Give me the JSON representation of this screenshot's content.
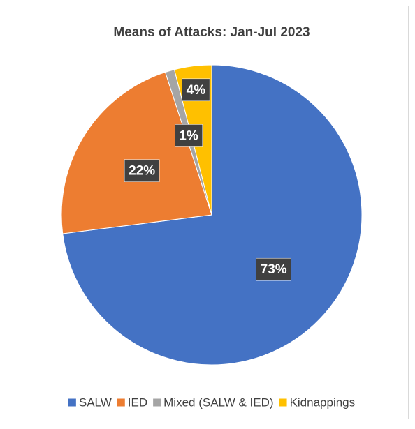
{
  "chart_data": {
    "type": "pie",
    "title": "Means of Attacks: Jan-Jul 2023",
    "categories": [
      "SALW",
      "IED",
      "Mixed (SALW & IED)",
      "Kidnappings"
    ],
    "values": [
      73,
      22,
      1,
      4
    ],
    "value_labels": [
      "73%",
      "22%",
      "1%",
      "4%"
    ],
    "colors": [
      "#4472c4",
      "#ed7d31",
      "#a5a5a5",
      "#ffc000"
    ],
    "legend": "bottom"
  }
}
